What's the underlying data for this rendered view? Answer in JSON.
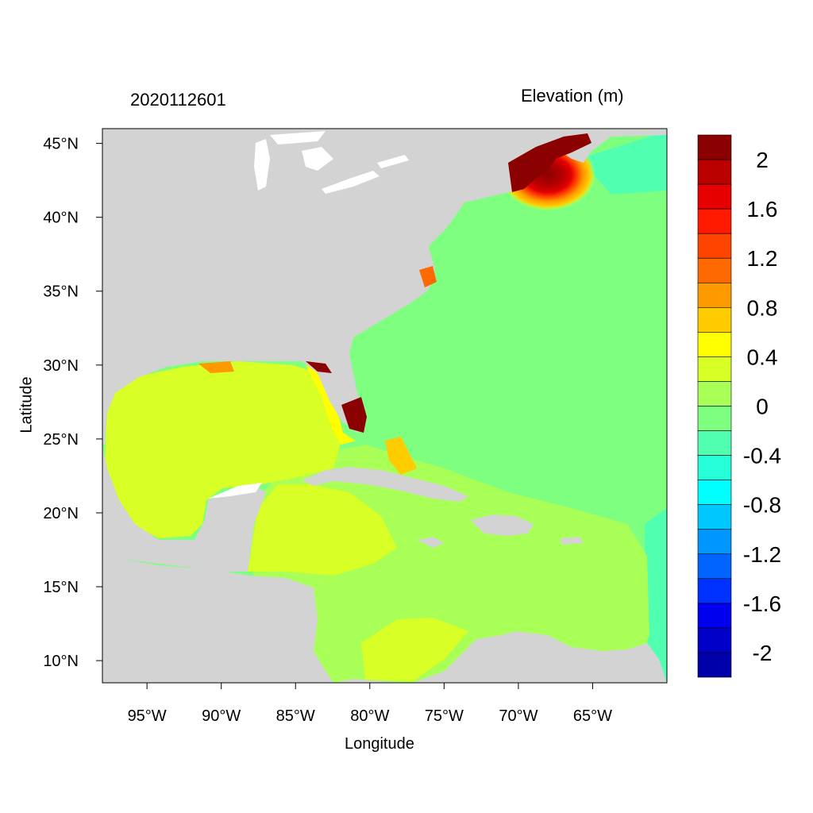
{
  "chart_data": {
    "type": "heatmap",
    "subject": "Sea surface elevation, western North Atlantic / Gulf of Mexico / Caribbean",
    "datetime_label": "2020112601",
    "variable_label": "Elevation (m)",
    "xlabel": "Longitude",
    "ylabel": "Latitude",
    "xlim": [
      -98,
      -60
    ],
    "ylim": [
      8.5,
      46
    ],
    "x_ticks": [
      {
        "value": -95,
        "label": "95°W"
      },
      {
        "value": -90,
        "label": "90°W"
      },
      {
        "value": -85,
        "label": "85°W"
      },
      {
        "value": -80,
        "label": "80°W"
      },
      {
        "value": -75,
        "label": "75°W"
      },
      {
        "value": -70,
        "label": "70°W"
      },
      {
        "value": -65,
        "label": "65°W"
      }
    ],
    "y_ticks": [
      {
        "value": 45,
        "label": "45°N"
      },
      {
        "value": 40,
        "label": "40°N"
      },
      {
        "value": 35,
        "label": "35°N"
      },
      {
        "value": 30,
        "label": "30°N"
      },
      {
        "value": 25,
        "label": "25°N"
      },
      {
        "value": 20,
        "label": "20°N"
      },
      {
        "value": 15,
        "label": "15°N"
      },
      {
        "value": 10,
        "label": "10°N"
      }
    ],
    "colorbar": {
      "colors_top_to_bottom": [
        "#8b0000",
        "#bb0000",
        "#e60000",
        "#ff1a00",
        "#ff4400",
        "#ff6a00",
        "#ff9900",
        "#ffcc00",
        "#ffff00",
        "#d8ff26",
        "#a8ff55",
        "#7fff80",
        "#50ffb0",
        "#26ffd8",
        "#00ffff",
        "#00c8ff",
        "#0096ff",
        "#0064ff",
        "#0032ff",
        "#0000ee",
        "#0000c8",
        "#0000aa"
      ],
      "labels": [
        "2",
        "1.6",
        "1.2",
        "0.8",
        "0.4",
        "0",
        "-0.4",
        "-0.8",
        "-1.2",
        "-1.6",
        "-2"
      ]
    },
    "colors": {
      "land": "#d3d3d3",
      "lakes": "#ffffff",
      "open_atlantic": "#7fff80",
      "gulf_of_mexico": "#d8ff26",
      "caribbean": "#a8ff55",
      "gulf_of_maine_surge": "#8b0000"
    }
  }
}
